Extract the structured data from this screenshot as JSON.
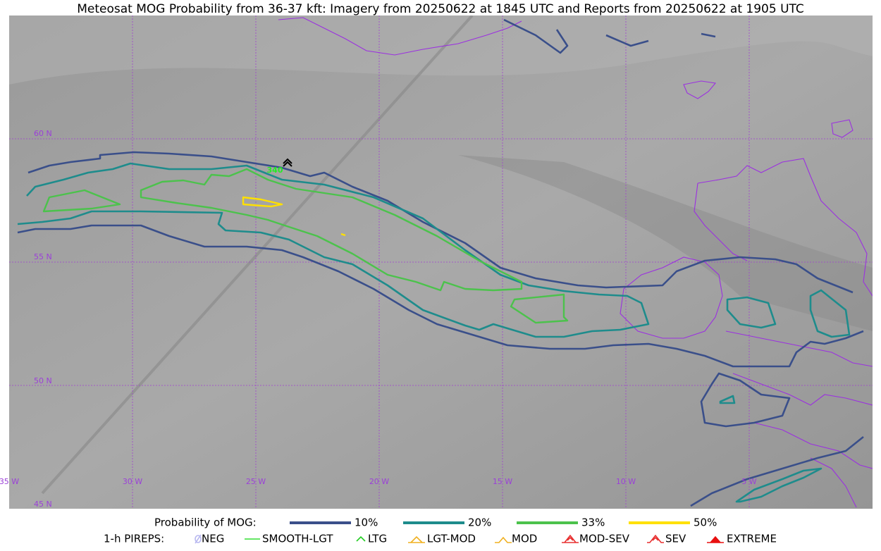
{
  "title": "Meteosat MOG Probability from 36-37 kft: Imagery from 20250622 at 1845 UTC and Reports from 20250622 at 1905 UTC",
  "latitude_labels": [
    "60 N",
    "55 N",
    "50 N",
    "45 N"
  ],
  "longitude_labels": [
    "35 W",
    "30 W",
    "25 W",
    "20 W",
    "15 W",
    "10 W",
    "5 W"
  ],
  "report_labels": [
    "340"
  ],
  "legend": {
    "mog_title": "Probability of MOG:",
    "mog_items": [
      {
        "label": "10%",
        "color": "#3a4f8a"
      },
      {
        "label": "20%",
        "color": "#1e8c8c"
      },
      {
        "label": "33%",
        "color": "#4cc24c"
      },
      {
        "label": "50%",
        "color": "#ffe000"
      }
    ],
    "pirep_title": "1-h PIREPS:",
    "pirep_items": [
      {
        "label": "NEG",
        "color": "#b8b8f0"
      },
      {
        "label": "SMOOTH-LGT",
        "color": "#33dd33"
      },
      {
        "label": "LTG",
        "color": "#22cc22"
      },
      {
        "label": "LGT-MOD",
        "color": "#f0b020"
      },
      {
        "label": "MOD",
        "color": "#f0b020"
      },
      {
        "label": "MOD-SEV",
        "color": "#e83030"
      },
      {
        "label": "SEV",
        "color": "#e83030"
      },
      {
        "label": "EXTREME",
        "color": "#e81010"
      }
    ]
  }
}
